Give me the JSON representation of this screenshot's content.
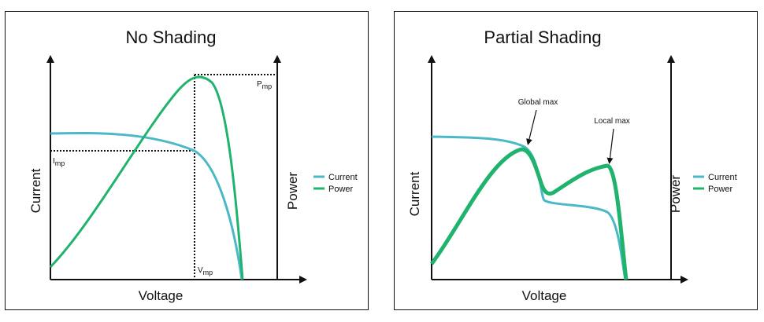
{
  "colors": {
    "current": "#4ab8c6",
    "power": "#1fb36e",
    "axis": "#111111"
  },
  "legend": {
    "current": "Current",
    "power": "Power"
  },
  "panels": [
    {
      "title": "No Shading",
      "xlabel": "Voltage",
      "ylabel_left": "Current",
      "ylabel_right": "Power",
      "labels": {
        "imp": "I",
        "imp_sub": "mp",
        "vmp": "V",
        "vmp_sub": "mp",
        "pmp": "P",
        "pmp_sub": "mp"
      }
    },
    {
      "title": "Partial Shading",
      "xlabel": "Voltage",
      "ylabel_left": "Current",
      "ylabel_right": "Power",
      "annotations": {
        "global": "Global max",
        "local": "Local max"
      }
    }
  ]
}
